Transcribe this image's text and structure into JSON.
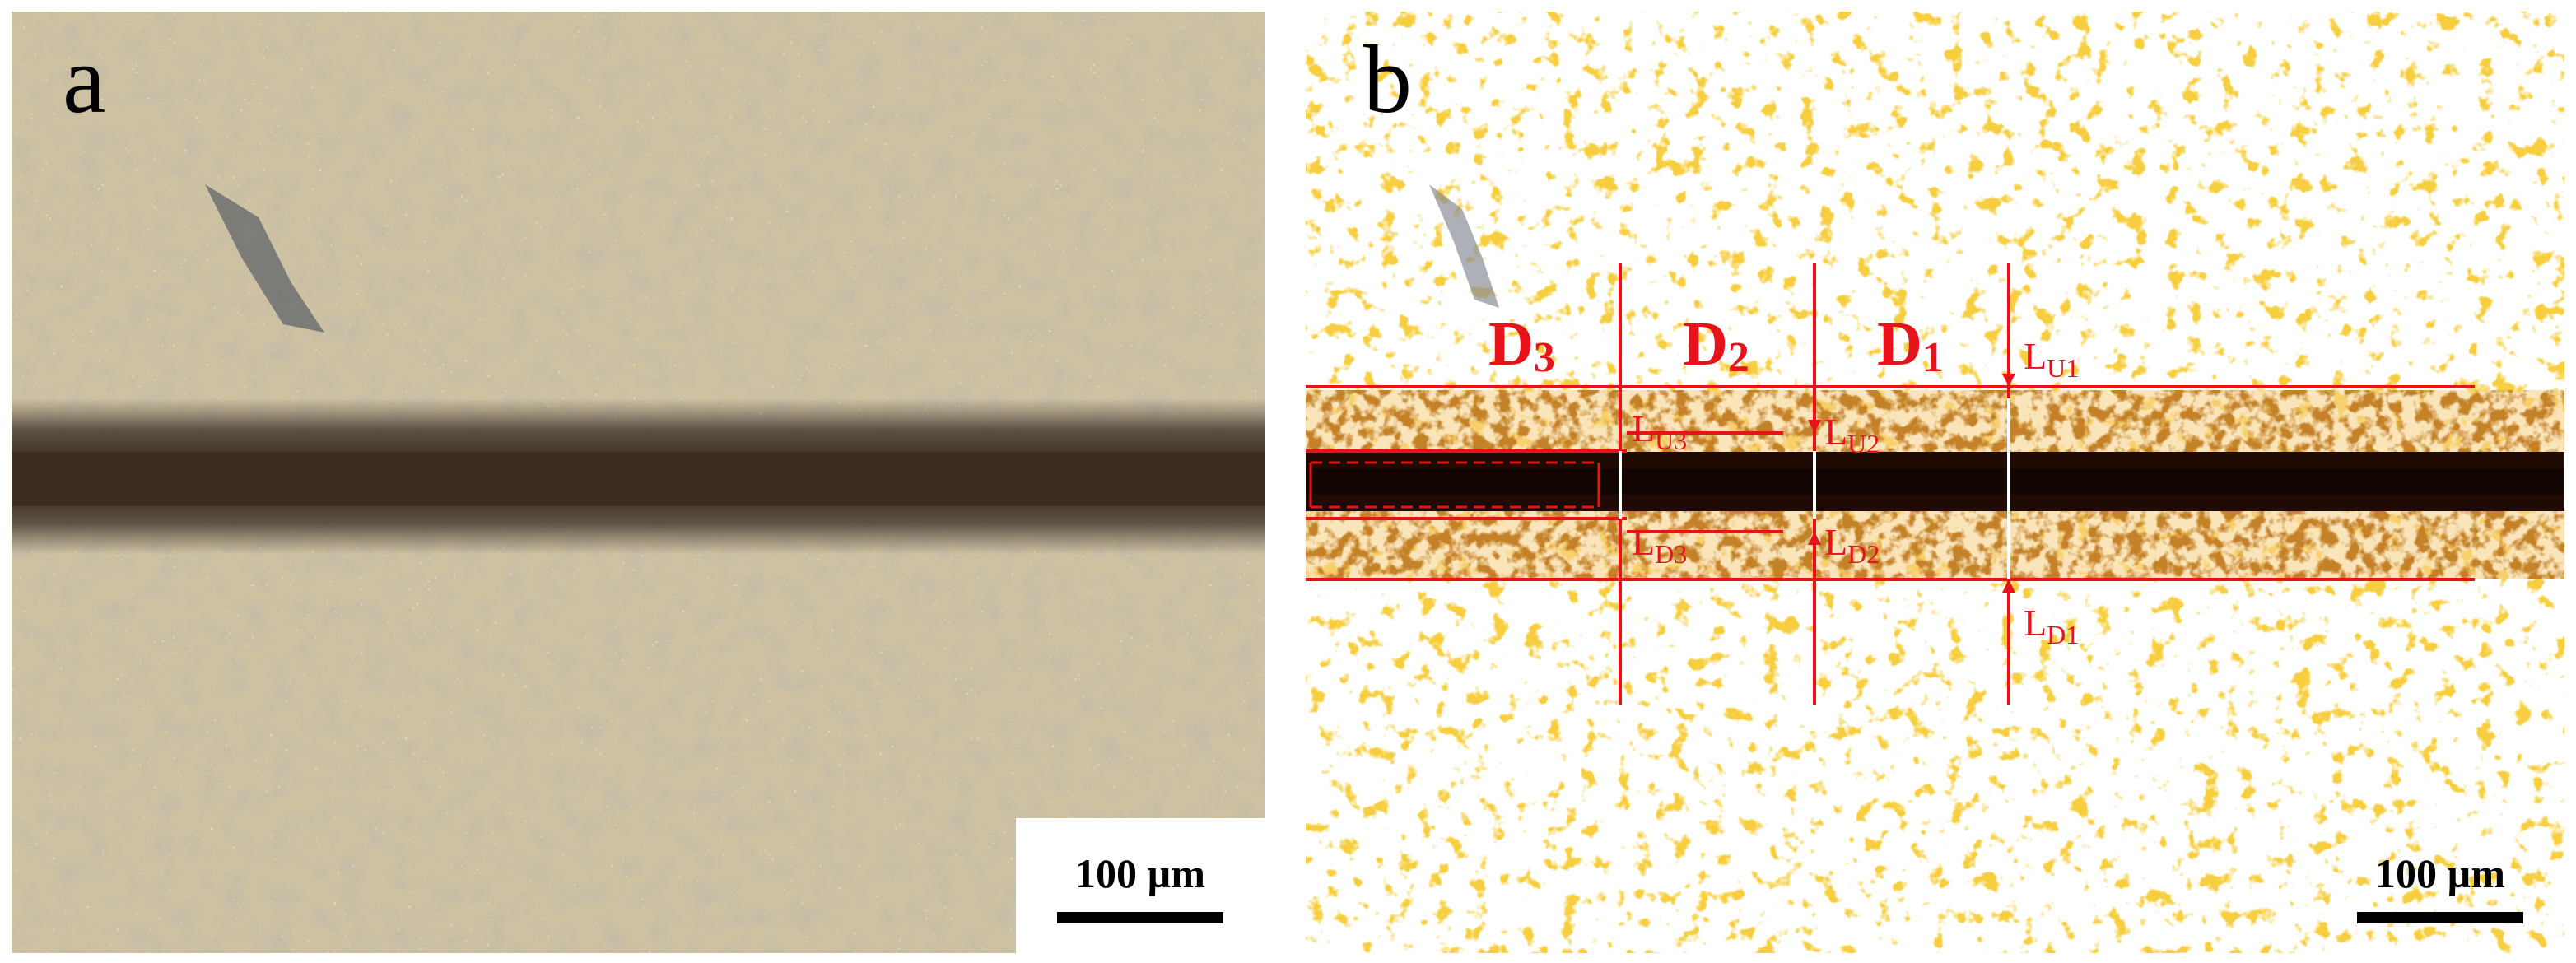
{
  "panels": {
    "a": {
      "letter": "a",
      "scalebar_label": "100 µm"
    },
    "b": {
      "letter": "b",
      "scalebar_label": "100 µm",
      "regions": {
        "d1_main": "D",
        "d1_sub": "1",
        "d2_main": "D",
        "d2_sub": "2",
        "d3_main": "D",
        "d3_sub": "3"
      },
      "lengths": {
        "lu1_main": "L",
        "lu1_sub": "U1",
        "lu2_main": "L",
        "lu2_sub": "U2",
        "lu3_main": "L",
        "lu3_sub": "U3",
        "ld1_main": "L",
        "ld1_sub": "D1",
        "ld2_main": "L",
        "ld2_sub": "D2",
        "ld3_main": "L",
        "ld3_sub": "D3"
      }
    }
  },
  "colors": {
    "annotation": "#e8121a",
    "background": "#ffffff",
    "text": "#000000"
  }
}
